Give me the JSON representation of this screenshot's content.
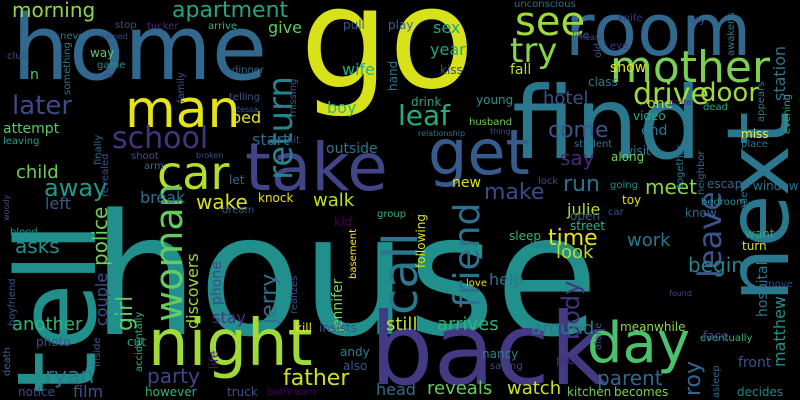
{
  "background": "#000000",
  "palette": [
    "#440154",
    "#3b528b",
    "#21908d",
    "#5dc863",
    "#fde725"
  ],
  "words": [
    {
      "text": "house",
      "color": "#21908d"
    },
    {
      "text": "go",
      "color": "#d8e219"
    },
    {
      "text": "find",
      "color": "#2a788e"
    },
    {
      "text": "home",
      "color": "#31688e"
    },
    {
      "text": "tell",
      "color": "#21908d"
    },
    {
      "text": "back",
      "color": "#443983"
    },
    {
      "text": "next",
      "color": "#2a788e"
    },
    {
      "text": "room",
      "color": "#31688e"
    },
    {
      "text": "take",
      "color": "#414487"
    },
    {
      "text": "night",
      "color": "#a0da39"
    },
    {
      "text": "man",
      "color": "#e5e419"
    },
    {
      "text": "get",
      "color": "#365c8d"
    },
    {
      "text": "day",
      "color": "#4ac16d"
    },
    {
      "text": "car",
      "color": "#b5de2b"
    },
    {
      "text": "mother",
      "color": "#7ad151"
    },
    {
      "text": "call",
      "color": "#2a788e"
    },
    {
      "text": "see",
      "color": "#a0da39"
    },
    {
      "text": "try",
      "color": "#86d549"
    },
    {
      "text": "woman",
      "color": "#63cb5f"
    },
    {
      "text": "friend",
      "color": "#2c728e"
    },
    {
      "text": "return",
      "color": "#26828e"
    },
    {
      "text": "school",
      "color": "#46327e"
    },
    {
      "text": "later",
      "color": "#3e4a89"
    },
    {
      "text": "leave",
      "color": "#3b528b"
    },
    {
      "text": "drive",
      "color": "#a0da39"
    },
    {
      "text": "door",
      "color": "#a0da39"
    },
    {
      "text": "leaf",
      "color": "#25ac82"
    },
    {
      "text": "away",
      "color": "#1e9b8a"
    },
    {
      "text": "apartment",
      "color": "#21a685"
    },
    {
      "text": "police",
      "color": "#6ece58"
    },
    {
      "text": "girl",
      "color": "#5ec962"
    },
    {
      "text": "father",
      "color": "#d0e11c"
    },
    {
      "text": "party",
      "color": "#414487"
    },
    {
      "text": "ryan",
      "color": "#2a788e"
    },
    {
      "text": "time",
      "color": "#e5e419"
    },
    {
      "text": "make",
      "color": "#3e4a89"
    },
    {
      "text": "come",
      "color": "#3b528b"
    },
    {
      "text": "run",
      "color": "#2c728e"
    },
    {
      "text": "meet",
      "color": "#86d549"
    },
    {
      "text": "roy",
      "color": "#31688e"
    },
    {
      "text": "body",
      "color": "#46327e"
    },
    {
      "text": "morning",
      "color": "#8fd744"
    },
    {
      "text": "parent",
      "color": "#31688e"
    },
    {
      "text": "jerry",
      "color": "#2d718e"
    },
    {
      "text": "say",
      "color": "#482878"
    },
    {
      "text": "walk",
      "color": "#c2df23"
    },
    {
      "text": "work",
      "color": "#2a788e"
    },
    {
      "text": "hotel",
      "color": "#3b528b"
    },
    {
      "text": "begin",
      "color": "#25858e"
    },
    {
      "text": "look",
      "color": "#b5de2b"
    },
    {
      "text": "help",
      "color": "#2a788e"
    },
    {
      "text": "wake",
      "color": "#d8e219"
    },
    {
      "text": "asks",
      "color": "#21908d"
    },
    {
      "text": "left",
      "color": "#38588c"
    },
    {
      "text": "child",
      "color": "#6ece58"
    },
    {
      "text": "give",
      "color": "#63cb5f"
    },
    {
      "text": "boy",
      "color": "#2fb47c"
    },
    {
      "text": "wife",
      "color": "#27ad81"
    },
    {
      "text": "still",
      "color": "#c2df23"
    },
    {
      "text": "arrives",
      "color": "#2fb47c"
    },
    {
      "text": "around",
      "color": "#2a788e"
    },
    {
      "text": "reveals",
      "color": "#65cb5e"
    },
    {
      "text": "watch",
      "color": "#c8e020"
    },
    {
      "text": "head",
      "color": "#2d708e"
    },
    {
      "text": "another",
      "color": "#2fb47c"
    },
    {
      "text": "film",
      "color": "#3b528b"
    },
    {
      "text": "stay",
      "color": "#46327e"
    },
    {
      "text": "break",
      "color": "#2d708e"
    },
    {
      "text": "start",
      "color": "#31688e"
    },
    {
      "text": "bed",
      "color": "#e5e419"
    },
    {
      "text": "sex",
      "color": "#20a386"
    },
    {
      "text": "year",
      "color": "#22a884"
    },
    {
      "text": "fall",
      "color": "#b5de2b"
    },
    {
      "text": "show",
      "color": "#e5e419"
    },
    {
      "text": "outside",
      "color": "#2a788e"
    },
    {
      "text": "discovers",
      "color": "#a0da39"
    },
    {
      "text": "phone",
      "color": "#3e4a89"
    },
    {
      "text": "couple",
      "color": "#3b528b"
    },
    {
      "text": "jennifer",
      "color": "#7ad151"
    },
    {
      "text": "end",
      "color": "#2a788e"
    },
    {
      "text": "one",
      "color": "#b5de2b"
    },
    {
      "text": "video",
      "color": "#22a884"
    },
    {
      "text": "julie",
      "color": "#b5de2b"
    },
    {
      "text": "new",
      "color": "#d8e219"
    },
    {
      "text": "kid",
      "color": "#440154"
    },
    {
      "text": "attempt",
      "color": "#5ec962"
    },
    {
      "text": "hand",
      "color": "#2a788e"
    },
    {
      "text": "drink",
      "color": "#20a386"
    },
    {
      "text": "kiss",
      "color": "#3e4a89"
    },
    {
      "text": "pull",
      "color": "#365c8d"
    },
    {
      "text": "play",
      "color": "#31688e"
    },
    {
      "text": "young",
      "color": "#21908d"
    },
    {
      "text": "class",
      "color": "#2a788e"
    },
    {
      "text": "knock",
      "color": "#e5e419"
    },
    {
      "text": "let",
      "color": "#31688e"
    },
    {
      "text": "life",
      "color": "#481f70"
    },
    {
      "text": "kill",
      "color": "#e5e419"
    },
    {
      "text": "insists",
      "color": "#3b528b"
    },
    {
      "text": "andy",
      "color": "#26828e"
    },
    {
      "text": "also",
      "color": "#38588c"
    },
    {
      "text": "nancy",
      "color": "#26828e"
    },
    {
      "text": "saying",
      "color": "#3e4a89"
    },
    {
      "text": "pick",
      "color": "#482878"
    },
    {
      "text": "eventually",
      "color": "#2fb47c"
    },
    {
      "text": "face",
      "color": "#3e4a89"
    },
    {
      "text": "matthew",
      "color": "#21908d"
    },
    {
      "text": "hospital",
      "color": "#2a788e"
    },
    {
      "text": "front",
      "color": "#3b528b"
    },
    {
      "text": "decides",
      "color": "#26828e"
    },
    {
      "text": "becomes",
      "color": "#7ad151"
    },
    {
      "text": "kitchen",
      "color": "#6ece58"
    },
    {
      "text": "however",
      "color": "#2fb47c"
    },
    {
      "text": "truck",
      "color": "#3b528b"
    },
    {
      "text": "bathroom",
      "color": "#440154"
    },
    {
      "text": "notice",
      "color": "#3e4a89"
    },
    {
      "text": "photo",
      "color": "#3b528b"
    },
    {
      "text": "cut",
      "color": "#21a685"
    },
    {
      "text": "escape",
      "color": "#31688e"
    },
    {
      "text": "window",
      "color": "#2c728e"
    },
    {
      "text": "bedroom",
      "color": "#21908d"
    },
    {
      "text": "know",
      "color": "#31688e"
    },
    {
      "text": "want",
      "color": "#21a685"
    },
    {
      "text": "turn",
      "color": "#d8e219"
    },
    {
      "text": "move",
      "color": "#414487"
    },
    {
      "text": "place",
      "color": "#2a788e"
    },
    {
      "text": "miss",
      "color": "#fde725"
    },
    {
      "text": "key",
      "color": "#3b528b"
    },
    {
      "text": "knife",
      "color": "#46327e"
    },
    {
      "text": "station",
      "color": "#2a788e"
    },
    {
      "text": "dead",
      "color": "#22a884"
    },
    {
      "text": "invite",
      "color": "#482878"
    },
    {
      "text": "evening",
      "color": "#22a884"
    },
    {
      "text": "awakens",
      "color": "#2a788e"
    },
    {
      "text": "visit",
      "color": "#2a788e"
    },
    {
      "text": "along",
      "color": "#6ece58"
    },
    {
      "text": "student",
      "color": "#2a788e"
    },
    {
      "text": "going",
      "color": "#21908d"
    },
    {
      "text": "toy",
      "color": "#d8e219"
    },
    {
      "text": "meanwhile",
      "color": "#8fd744"
    },
    {
      "text": "alone",
      "color": "#3b528b"
    },
    {
      "text": "open",
      "color": "#38588c"
    },
    {
      "text": "street",
      "color": "#2fb47c"
    },
    {
      "text": "sleep",
      "color": "#2fb47c"
    },
    {
      "text": "lake",
      "color": "#2a788e"
    },
    {
      "text": "lock",
      "color": "#3e4a89"
    },
    {
      "text": "group",
      "color": "#2fb47c"
    },
    {
      "text": "following",
      "color": "#d8e219"
    },
    {
      "text": "love",
      "color": "#e5e419"
    },
    {
      "text": "realizes",
      "color": "#3e4a89"
    },
    {
      "text": "basement",
      "color": "#fde725"
    },
    {
      "text": "dream",
      "color": "#3b528b"
    },
    {
      "text": "shoot",
      "color": "#3b528b"
    },
    {
      "text": "arm",
      "color": "#31688e"
    },
    {
      "text": "accidentally",
      "color": "#2fb47c"
    },
    {
      "text": "revealed",
      "color": "#3b528b"
    },
    {
      "text": "finally",
      "color": "#31688e"
    },
    {
      "text": "inside",
      "color": "#3b528b"
    },
    {
      "text": "death",
      "color": "#31688e"
    },
    {
      "text": "boyfriend",
      "color": "#3b528b"
    },
    {
      "text": "blood",
      "color": "#21908d"
    },
    {
      "text": "woody",
      "color": "#3b528b"
    },
    {
      "text": "leaving",
      "color": "#20a386"
    },
    {
      "text": "club",
      "color": "#3b528b"
    },
    {
      "text": "never",
      "color": "#2a788e"
    },
    {
      "text": "named",
      "color": "#3e4a89"
    },
    {
      "text": "stop",
      "color": "#3e4a89"
    },
    {
      "text": "tucker",
      "color": "#482878"
    },
    {
      "text": "arrive",
      "color": "#2fb47c"
    },
    {
      "text": "unconscious",
      "color": "#2c728e"
    },
    {
      "text": "like",
      "color": "#3b528b"
    },
    {
      "text": "hears",
      "color": "#3e4a89"
    },
    {
      "text": "old",
      "color": "#38588c"
    },
    {
      "text": "eye",
      "color": "#46327e"
    },
    {
      "text": "something",
      "color": "#2a788e"
    },
    {
      "text": "way",
      "color": "#5ec962"
    },
    {
      "text": "game",
      "color": "#21908d"
    },
    {
      "text": "mr",
      "color": "#3e4a89"
    },
    {
      "text": "family",
      "color": "#3b528b"
    },
    {
      "text": "dinner",
      "color": "#31688e"
    },
    {
      "text": "missing",
      "color": "#38588c"
    },
    {
      "text": "telling",
      "color": "#3b528b"
    },
    {
      "text": "tessa",
      "color": "#3b528b"
    },
    {
      "text": "hit",
      "color": "#3e4a89"
    },
    {
      "text": "broken",
      "color": "#3b528b"
    },
    {
      "text": "n",
      "color": "#5ec962"
    },
    {
      "text": "husband",
      "color": "#6ece58"
    },
    {
      "text": "thing",
      "color": "#3e4a89"
    },
    {
      "text": "relationship",
      "color": "#2c728e"
    },
    {
      "text": "together",
      "color": "#2a788e"
    },
    {
      "text": "neighbor",
      "color": "#31688e"
    },
    {
      "text": "appears",
      "color": "#2a788e"
    },
    {
      "text": "made",
      "color": "#2c728e"
    },
    {
      "text": "car",
      "color": "#3b528b"
    },
    {
      "text": "found",
      "color": "#3e4a89"
    },
    {
      "text": "asleep",
      "color": "#31688e"
    }
  ]
}
